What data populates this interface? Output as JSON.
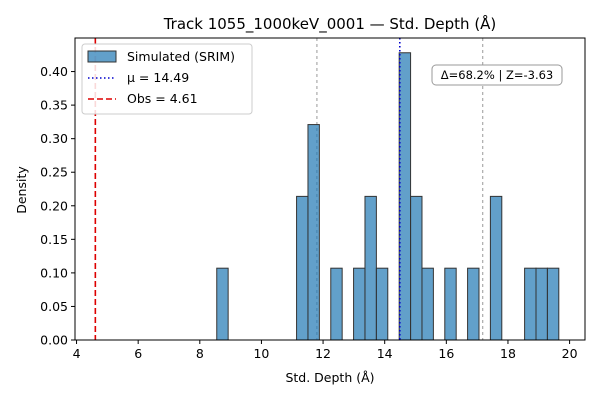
{
  "chart_data": {
    "type": "bar",
    "title": "Track 1055_1000keV_0001 — Std. Depth (Å)",
    "xlabel": "Std. Depth (Å)",
    "ylabel": "Density",
    "xlim": [
      3.95,
      20.5
    ],
    "ylim": [
      0,
      0.45
    ],
    "xticks": [
      4,
      6,
      8,
      10,
      12,
      14,
      16,
      18,
      20
    ],
    "yticks": [
      0.0,
      0.05,
      0.1,
      0.15,
      0.2,
      0.25,
      0.3,
      0.35,
      0.4
    ],
    "bin_width": 0.37,
    "histogram": {
      "name": "Simulated (SRIM)",
      "color": "#1f77b4",
      "bins": [
        {
          "x0": 8.55,
          "value": 0.107
        },
        {
          "x0": 11.14,
          "value": 0.214
        },
        {
          "x0": 11.51,
          "value": 0.321
        },
        {
          "x0": 12.25,
          "value": 0.107
        },
        {
          "x0": 12.99,
          "value": 0.107
        },
        {
          "x0": 13.36,
          "value": 0.214
        },
        {
          "x0": 13.73,
          "value": 0.107
        },
        {
          "x0": 14.47,
          "value": 0.428
        },
        {
          "x0": 14.84,
          "value": 0.214
        },
        {
          "x0": 15.21,
          "value": 0.107
        },
        {
          "x0": 15.95,
          "value": 0.107
        },
        {
          "x0": 16.69,
          "value": 0.107
        },
        {
          "x0": 17.43,
          "value": 0.214
        },
        {
          "x0": 18.54,
          "value": 0.107
        },
        {
          "x0": 18.91,
          "value": 0.107
        },
        {
          "x0": 19.28,
          "value": 0.107
        }
      ]
    },
    "reference_lines": [
      {
        "label": "μ = 14.49",
        "x": 14.49,
        "color": "#0000cc",
        "style": "dotted"
      },
      {
        "label": "Obs = 4.61",
        "x": 4.61,
        "color": "#dd0000",
        "style": "dashed"
      }
    ],
    "sigma_lines": [
      11.8,
      17.18
    ],
    "legend_position": "top-left",
    "annotation": "Δ=68.2% | Z=-3.63",
    "annotation_position": "top-right",
    "grid": false
  }
}
